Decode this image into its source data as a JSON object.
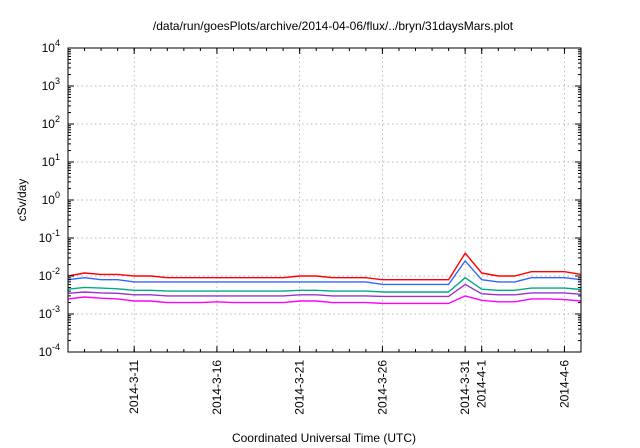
{
  "chart_data": {
    "type": "line",
    "title": "/data/run/goesPlots/archive/2014-04-06/flux/../bryn/31daysMars.plot",
    "xlabel": "Coordinated Universal Time (UTC)",
    "ylabel": "cSv/day",
    "yscale": "log",
    "ylim": [
      0.0001,
      10000
    ],
    "xlim": [
      "2014-03-07",
      "2014-04-07"
    ],
    "grid": true,
    "legend": "none",
    "yticks": [
      {
        "value": 0.0001,
        "base": "10",
        "exp": "-4"
      },
      {
        "value": 0.001,
        "base": "10",
        "exp": "-3"
      },
      {
        "value": 0.01,
        "base": "10",
        "exp": "-2"
      },
      {
        "value": 0.1,
        "base": "10",
        "exp": "-1"
      },
      {
        "value": 1,
        "base": "10",
        "exp": "0"
      },
      {
        "value": 10,
        "base": "10",
        "exp": "1"
      },
      {
        "value": 100,
        "base": "10",
        "exp": "2"
      },
      {
        "value": 1000,
        "base": "10",
        "exp": "3"
      },
      {
        "value": 10000,
        "base": "10",
        "exp": "4"
      }
    ],
    "xticks": [
      {
        "date": "2014-03-11",
        "label": "2014-3-11"
      },
      {
        "date": "2014-03-16",
        "label": "2014-3-16"
      },
      {
        "date": "2014-03-21",
        "label": "2014-3-21"
      },
      {
        "date": "2014-03-26",
        "label": "2014-3-26"
      },
      {
        "date": "2014-03-31",
        "label": "2014-3-31"
      },
      {
        "date": "2014-04-01",
        "label": "2014-4-1"
      },
      {
        "date": "2014-04-06",
        "label": "2014-4-6"
      }
    ],
    "series": [
      {
        "color": "#ff0000",
        "x": [
          "2014-03-07",
          "2014-03-08",
          "2014-03-09",
          "2014-03-10",
          "2014-03-11",
          "2014-03-12",
          "2014-03-13",
          "2014-03-14",
          "2014-03-15",
          "2014-03-16",
          "2014-03-17",
          "2014-03-18",
          "2014-03-19",
          "2014-03-20",
          "2014-03-21",
          "2014-03-22",
          "2014-03-23",
          "2014-03-24",
          "2014-03-25",
          "2014-03-26",
          "2014-03-27",
          "2014-03-28",
          "2014-03-29",
          "2014-03-30",
          "2014-03-31",
          "2014-04-01",
          "2014-04-02",
          "2014-04-03",
          "2014-04-04",
          "2014-04-05",
          "2014-04-06",
          "2014-04-07"
        ],
        "y": [
          0.01,
          0.012,
          0.011,
          0.011,
          0.01,
          0.01,
          0.009,
          0.009,
          0.009,
          0.009,
          0.009,
          0.009,
          0.009,
          0.009,
          0.01,
          0.01,
          0.009,
          0.009,
          0.009,
          0.008,
          0.008,
          0.008,
          0.008,
          0.008,
          0.04,
          0.012,
          0.01,
          0.01,
          0.013,
          0.013,
          0.013,
          0.011
        ]
      },
      {
        "color": "#3366ff",
        "x": [
          "2014-03-07",
          "2014-03-08",
          "2014-03-09",
          "2014-03-10",
          "2014-03-11",
          "2014-03-12",
          "2014-03-13",
          "2014-03-14",
          "2014-03-15",
          "2014-03-16",
          "2014-03-17",
          "2014-03-18",
          "2014-03-19",
          "2014-03-20",
          "2014-03-21",
          "2014-03-22",
          "2014-03-23",
          "2014-03-24",
          "2014-03-25",
          "2014-03-26",
          "2014-03-27",
          "2014-03-28",
          "2014-03-29",
          "2014-03-30",
          "2014-03-31",
          "2014-04-01",
          "2014-04-02",
          "2014-04-03",
          "2014-04-04",
          "2014-04-05",
          "2014-04-06",
          "2014-04-07"
        ],
        "y": [
          0.008,
          0.009,
          0.008,
          0.008,
          0.007,
          0.007,
          0.007,
          0.007,
          0.007,
          0.007,
          0.007,
          0.007,
          0.007,
          0.007,
          0.007,
          0.007,
          0.007,
          0.007,
          0.007,
          0.006,
          0.006,
          0.006,
          0.006,
          0.006,
          0.025,
          0.008,
          0.007,
          0.007,
          0.009,
          0.009,
          0.009,
          0.008
        ]
      },
      {
        "color": "#00aa88",
        "x": [
          "2014-03-07",
          "2014-03-08",
          "2014-03-09",
          "2014-03-10",
          "2014-03-11",
          "2014-03-12",
          "2014-03-13",
          "2014-03-14",
          "2014-03-15",
          "2014-03-16",
          "2014-03-17",
          "2014-03-18",
          "2014-03-19",
          "2014-03-20",
          "2014-03-21",
          "2014-03-22",
          "2014-03-23",
          "2014-03-24",
          "2014-03-25",
          "2014-03-26",
          "2014-03-27",
          "2014-03-28",
          "2014-03-29",
          "2014-03-30",
          "2014-03-31",
          "2014-04-01",
          "2014-04-02",
          "2014-04-03",
          "2014-04-04",
          "2014-04-05",
          "2014-04-06",
          "2014-04-07"
        ],
        "y": [
          0.0045,
          0.005,
          0.0048,
          0.0046,
          0.0042,
          0.0042,
          0.004,
          0.004,
          0.004,
          0.004,
          0.004,
          0.004,
          0.004,
          0.004,
          0.0042,
          0.0042,
          0.004,
          0.004,
          0.004,
          0.0038,
          0.0038,
          0.0038,
          0.0038,
          0.0038,
          0.009,
          0.0045,
          0.0042,
          0.0042,
          0.0048,
          0.0048,
          0.0048,
          0.0044
        ]
      },
      {
        "color": "#9933cc",
        "x": [
          "2014-03-07",
          "2014-03-08",
          "2014-03-09",
          "2014-03-10",
          "2014-03-11",
          "2014-03-12",
          "2014-03-13",
          "2014-03-14",
          "2014-03-15",
          "2014-03-16",
          "2014-03-17",
          "2014-03-18",
          "2014-03-19",
          "2014-03-20",
          "2014-03-21",
          "2014-03-22",
          "2014-03-23",
          "2014-03-24",
          "2014-03-25",
          "2014-03-26",
          "2014-03-27",
          "2014-03-28",
          "2014-03-29",
          "2014-03-30",
          "2014-03-31",
          "2014-04-01",
          "2014-04-02",
          "2014-04-03",
          "2014-04-04",
          "2014-04-05",
          "2014-04-06",
          "2014-04-07"
        ],
        "y": [
          0.0035,
          0.0038,
          0.0036,
          0.0035,
          0.0032,
          0.0032,
          0.003,
          0.003,
          0.003,
          0.003,
          0.003,
          0.003,
          0.003,
          0.003,
          0.0032,
          0.0032,
          0.003,
          0.003,
          0.003,
          0.0029,
          0.0029,
          0.0029,
          0.0029,
          0.0029,
          0.006,
          0.0034,
          0.0032,
          0.0032,
          0.0036,
          0.0036,
          0.0036,
          0.0033
        ]
      },
      {
        "color": "#ff00ff",
        "x": [
          "2014-03-07",
          "2014-03-08",
          "2014-03-09",
          "2014-03-10",
          "2014-03-11",
          "2014-03-12",
          "2014-03-13",
          "2014-03-14",
          "2014-03-15",
          "2014-03-16",
          "2014-03-17",
          "2014-03-18",
          "2014-03-19",
          "2014-03-20",
          "2014-03-21",
          "2014-03-22",
          "2014-03-23",
          "2014-03-24",
          "2014-03-25",
          "2014-03-26",
          "2014-03-27",
          "2014-03-28",
          "2014-03-29",
          "2014-03-30",
          "2014-03-31",
          "2014-04-01",
          "2014-04-02",
          "2014-04-03",
          "2014-04-04",
          "2014-04-05",
          "2014-04-06",
          "2014-04-07"
        ],
        "y": [
          0.0025,
          0.0028,
          0.0026,
          0.0025,
          0.0022,
          0.0022,
          0.002,
          0.002,
          0.002,
          0.0021,
          0.002,
          0.002,
          0.002,
          0.002,
          0.0022,
          0.0022,
          0.002,
          0.002,
          0.002,
          0.0019,
          0.0019,
          0.0019,
          0.0019,
          0.0019,
          0.003,
          0.0023,
          0.0021,
          0.0021,
          0.0025,
          0.0025,
          0.0024,
          0.0022
        ]
      }
    ]
  }
}
